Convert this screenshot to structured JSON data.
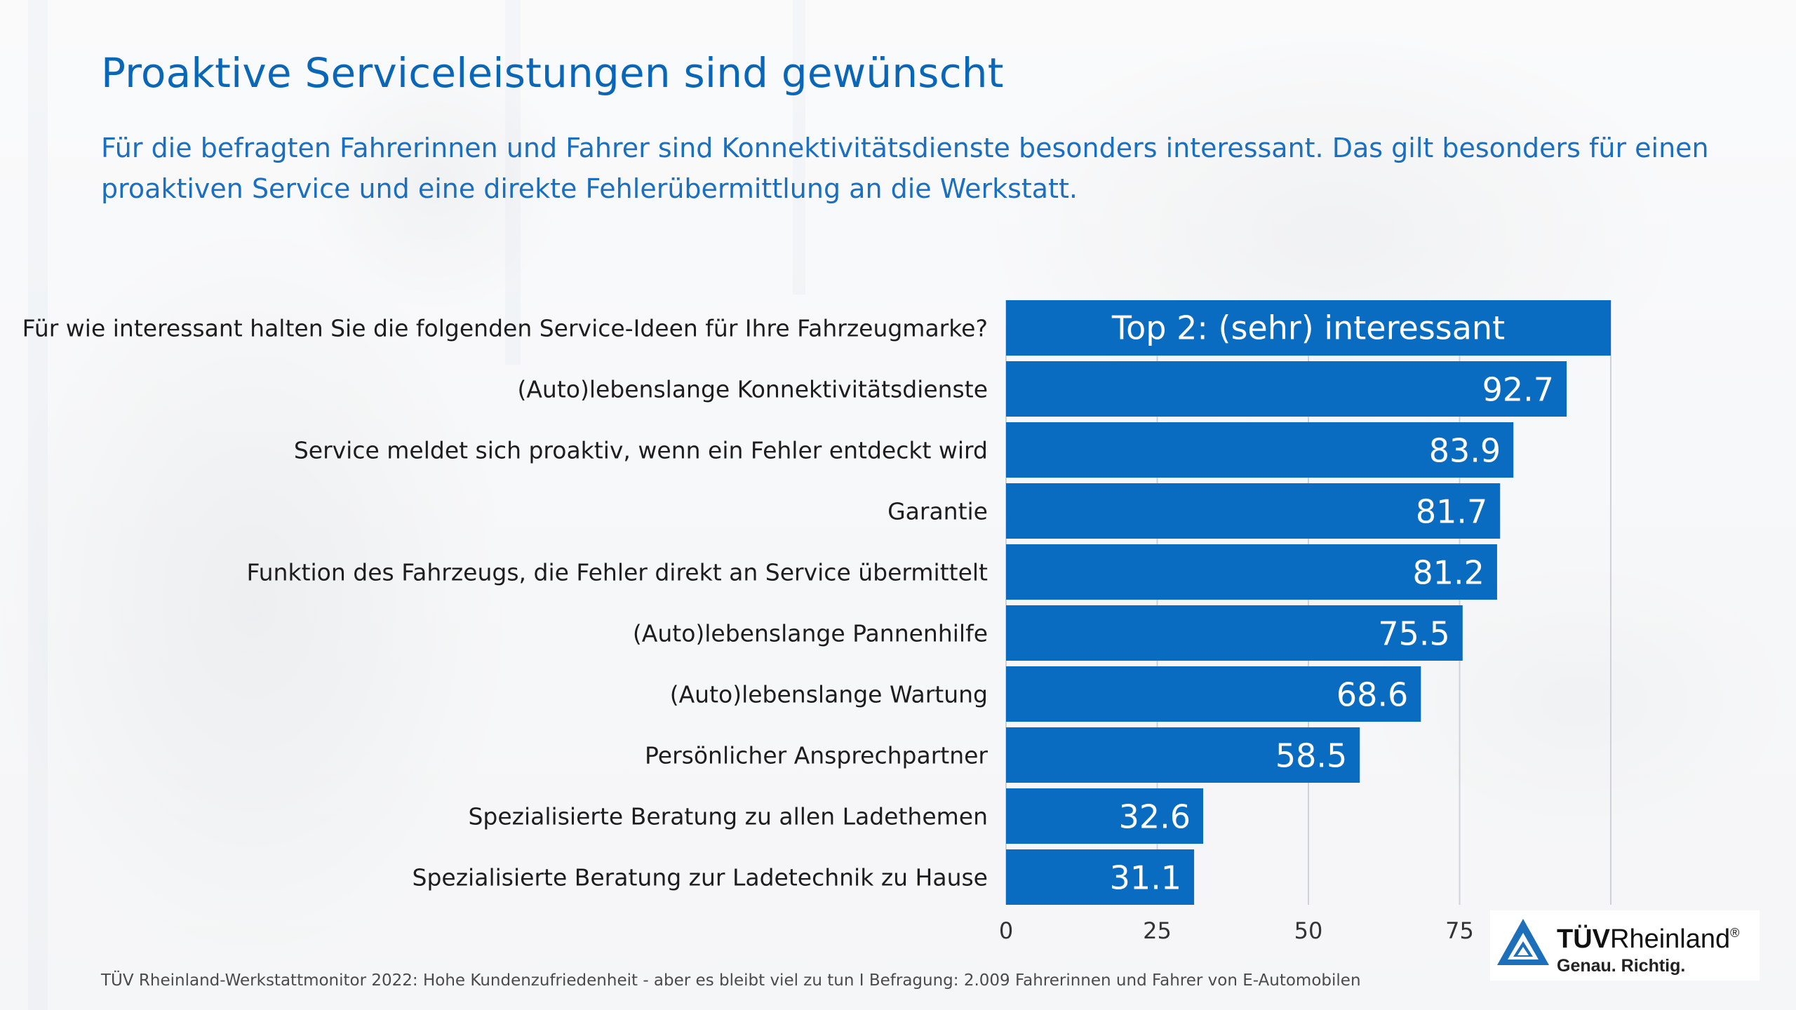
{
  "page": {
    "title": "Proaktive Serviceleistungen sind gewünscht",
    "subtitle": "Für die befragten Fahrerinnen und Fahrer sind Konnektivitätsdienste besonders interessant. Das gilt besonders für einen proaktiven Service und eine direkte Fehlerübermittlung an die Werkstatt.",
    "footer": "TÜV Rheinland-Werkstattmonitor 2022: Hohe Kundenzufriedenheit - aber es bleibt viel zu tun I Befragung: 2.009 Fahrerinnen und Fahrer von E-Automobilen"
  },
  "logo": {
    "brand_bold": "TÜV",
    "brand_regular": "Rheinland",
    "registered_mark": "®",
    "slogan": "Genau. Richtig.",
    "icon": "tuv-triangle-icon"
  },
  "colors": {
    "accent": "#0a66b7",
    "bar": "#0a6cc0",
    "text": "#222222",
    "grid": "#cfd3d8"
  },
  "chart_data": {
    "type": "bar",
    "orientation": "horizontal",
    "question": "Für wie interessant halten Sie die folgenden Service-Ideen für Ihre Fahrzeugmarke?",
    "header": "Top 2: (sehr) interessant",
    "categories": [
      "(Auto)lebenslange Konnektivitätsdienste",
      "Service meldet sich proaktiv, wenn ein Fehler entdeckt wird",
      "Garantie",
      "Funktion des Fahrzeugs, die Fehler direkt an Service übermittelt",
      "(Auto)lebenslange Pannenhilfe",
      "(Auto)lebenslange Wartung",
      "Persönlicher Ansprechpartner",
      "Spezialisierte Beratung zu allen Ladethemen",
      "Spezialisierte Beratung zur Ladetechnik zu Hause"
    ],
    "values": [
      92.7,
      83.9,
      81.7,
      81.2,
      75.5,
      68.6,
      58.5,
      32.6,
      31.1
    ],
    "value_labels": [
      "92.7",
      "83.9",
      "81.7",
      "81.2",
      "75.5",
      "68.6",
      "58.5",
      "32.6",
      "31.1"
    ],
    "xlim": [
      0,
      100
    ],
    "xticks": [
      0,
      25,
      50,
      75
    ],
    "xtick_labels": [
      "0",
      "25",
      "50",
      "75"
    ],
    "grid": true
  }
}
